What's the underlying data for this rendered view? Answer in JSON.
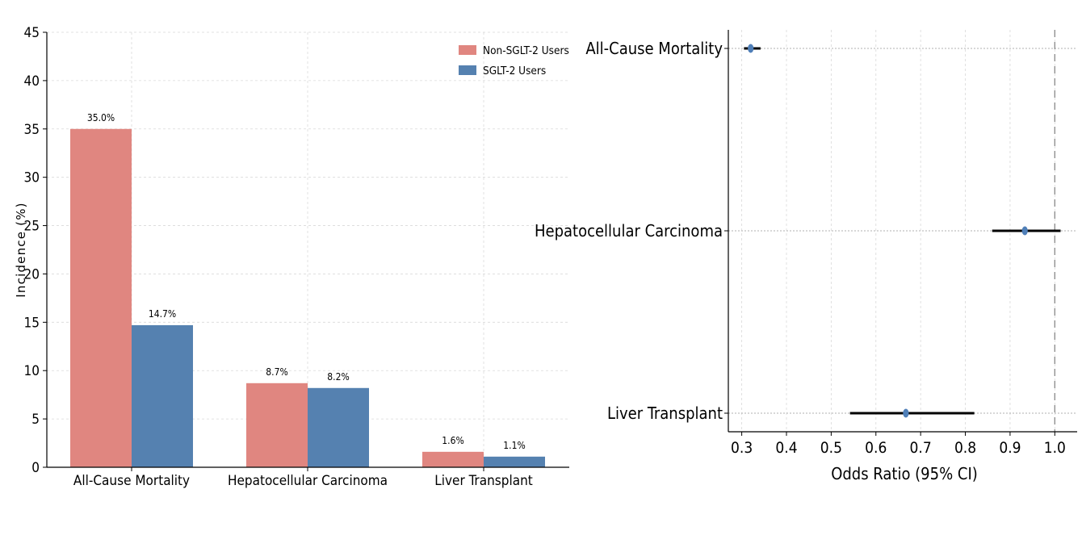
{
  "chart_data": [
    {
      "type": "bar",
      "categories": [
        "All-Cause Mortality",
        "Hepatocellular Carcinoma",
        "Liver Transplant"
      ],
      "series": [
        {
          "name": "Non-SGLT-2 Users",
          "values": [
            35.0,
            8.7,
            1.6
          ],
          "labels": [
            "35.0%",
            "8.7%",
            "1.6%"
          ],
          "color": "#e08680"
        },
        {
          "name": "SGLT-2 Users",
          "values": [
            14.7,
            8.2,
            1.1
          ],
          "labels": [
            "14.7%",
            "8.2%",
            "1.1%"
          ],
          "color": "#5581b0"
        }
      ],
      "ylabel": "Incidence (%)",
      "xlabel": "",
      "title": "",
      "ylim": [
        0,
        45
      ],
      "yticks": [
        0,
        5,
        10,
        15,
        20,
        25,
        30,
        35,
        40,
        45
      ],
      "ytick_labels": [
        "0",
        "5",
        "10",
        "15",
        "20",
        "25",
        "30",
        "35",
        "40",
        "45"
      ],
      "grid": true,
      "legend_position": "top-right"
    },
    {
      "type": "scatter",
      "subtype": "forest-plot",
      "categories": [
        "All-Cause Mortality",
        "Hepatocellular Carcinoma",
        "Liver Transplant"
      ],
      "odds_ratio": [
        0.32,
        0.933,
        0.667
      ],
      "ci_lower": [
        0.305,
        0.86,
        0.542
      ],
      "ci_upper": [
        0.342,
        1.013,
        0.82
      ],
      "reference_line": 1.0,
      "xlabel": "Odds Ratio (95% CI)",
      "ylabel": "",
      "title": "",
      "xlim": [
        0.27,
        1.05
      ],
      "xticks": [
        0.3,
        0.4,
        0.5,
        0.6,
        0.7,
        0.8,
        0.9,
        1.0
      ],
      "xtick_labels": [
        "0.3",
        "0.4",
        "0.5",
        "0.6",
        "0.7",
        "0.8",
        "0.9",
        "1.0"
      ],
      "point_color": "#4f7fb8",
      "grid": true
    }
  ]
}
